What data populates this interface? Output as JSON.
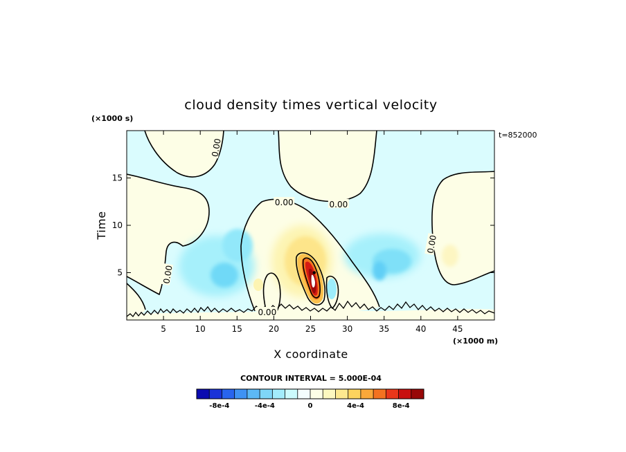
{
  "chart_data": {
    "type": "heatmap",
    "title": "cloud density times vertical velocity",
    "xlabel": "X coordinate",
    "ylabel": "Time",
    "x_units": "(×1000 m)",
    "y_units": "(×1000 s)",
    "time_stamp": "t=852000",
    "xlim": [
      0,
      50
    ],
    "ylim": [
      0,
      20
    ],
    "x_ticks": [
      5,
      10,
      15,
      20,
      25,
      30,
      35,
      40,
      45
    ],
    "y_ticks": [
      5,
      10,
      15
    ],
    "contour_labels": [
      {
        "text": "0.00",
        "x": 12.2,
        "y": 18.2
      },
      {
        "text": "0.00",
        "x": 21.4,
        "y": 12.4
      },
      {
        "text": "0.00",
        "x": 28.8,
        "y": 12.2
      },
      {
        "text": "0.00",
        "x": 5.6,
        "y": 4.8
      },
      {
        "text": "0.00",
        "x": 19.1,
        "y": 0.8
      },
      {
        "text": "0.00",
        "x": 41.5,
        "y": 8.0
      }
    ],
    "features": [
      {
        "kind": "max",
        "x": 25.5,
        "y": 5.0,
        "value": 0.0011
      },
      {
        "kind": "positive",
        "x": 23.5,
        "y": 7.5,
        "value": 0.0003
      },
      {
        "kind": "min",
        "x": 13.5,
        "y": 4.8,
        "value": -0.0003
      },
      {
        "kind": "min",
        "x": 36.5,
        "y": 6.5,
        "value": -0.0003
      },
      {
        "kind": "positive",
        "x": 44.2,
        "y": 7.0,
        "value": 0.0001
      }
    ],
    "colorbar": {
      "title": "CONTOUR INTERVAL = 5.000E-04",
      "tick_labels": [
        "-8e-4",
        "-4e-4",
        "0",
        "4e-4",
        "8e-4"
      ],
      "tick_values": [
        -0.0008,
        -0.0004,
        0,
        0.0004,
        0.0008
      ],
      "min": -0.001,
      "max": 0.001,
      "colors": [
        "#0b0bb0",
        "#1a33d8",
        "#2864ee",
        "#3f92f3",
        "#5cb8f5",
        "#7fd6f7",
        "#a3ecfb",
        "#ccfbfd",
        "#f4fdfe",
        "#fdfee6",
        "#fdf8bf",
        "#fde98f",
        "#fcd35e",
        "#f9a83a",
        "#f47220",
        "#e9371a",
        "#c8100f",
        "#980808"
      ]
    }
  }
}
